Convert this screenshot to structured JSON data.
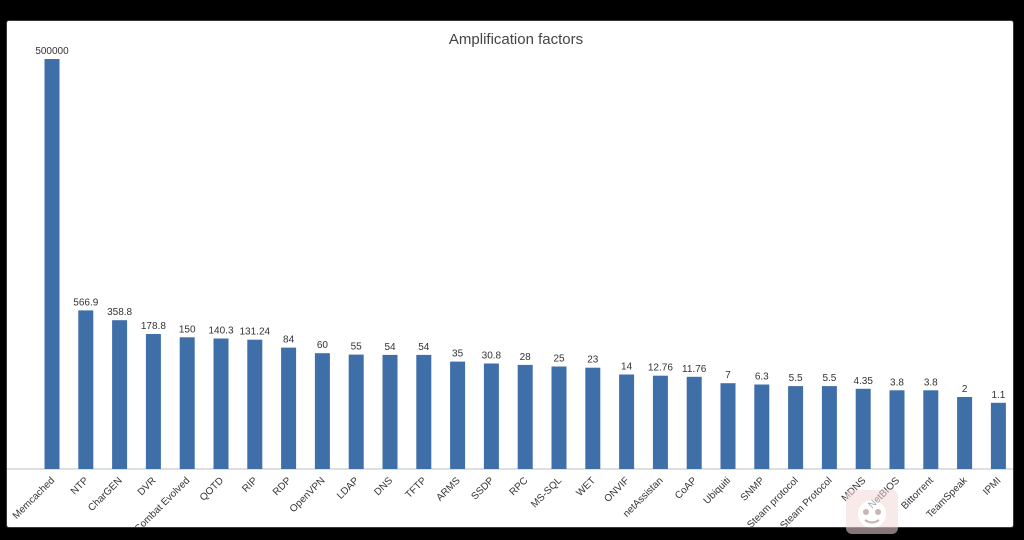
{
  "chart_data": {
    "type": "bar",
    "title": "Amplification factors",
    "xlabel": "",
    "ylabel": "",
    "categories": [
      "Memcached",
      "NTP",
      "CharGEN",
      "DVR",
      "Combat Evolved",
      "QOTD",
      "RIP",
      "RDP",
      "OpenVPN",
      "LDAP",
      "DNS",
      "TFTP",
      "ARMS",
      "SSDP",
      "RPC",
      "MS-SQL",
      "WET",
      "ONVIF",
      "netAssistan",
      "CoAP",
      "Ubiquiti",
      "SNMP",
      "Steam protocol",
      "Steam Protocol",
      "MDNS",
      "NetBIOS",
      "Bittorrent",
      "TeamSpeak",
      "IPMI"
    ],
    "values": [
      500000,
      566.9,
      358.8,
      178.8,
      150,
      140.3,
      131.24,
      84,
      60,
      55,
      54,
      54,
      35,
      30.8,
      28,
      25,
      23,
      14,
      12.76,
      11.76,
      7,
      6.3,
      5.5,
      5.5,
      4.35,
      3.8,
      3.8,
      2,
      1.1
    ],
    "value_labels": [
      "500000",
      "566.9",
      "358.8",
      "178.8",
      "150",
      "140.3",
      "131.24",
      "84",
      "60",
      "55",
      "54",
      "54",
      "35",
      "30.8",
      "28",
      "25",
      "23",
      "14",
      "12.76",
      "11.76",
      "7",
      "6.3",
      "5.5",
      "5.5",
      "4.35",
      "3.8",
      "3.8",
      "2",
      "1.1"
    ],
    "scale": "non-linear",
    "grid": false,
    "legend": "none",
    "bar_color": "#3f6fa8",
    "axis_color": "#bfbfbf"
  }
}
